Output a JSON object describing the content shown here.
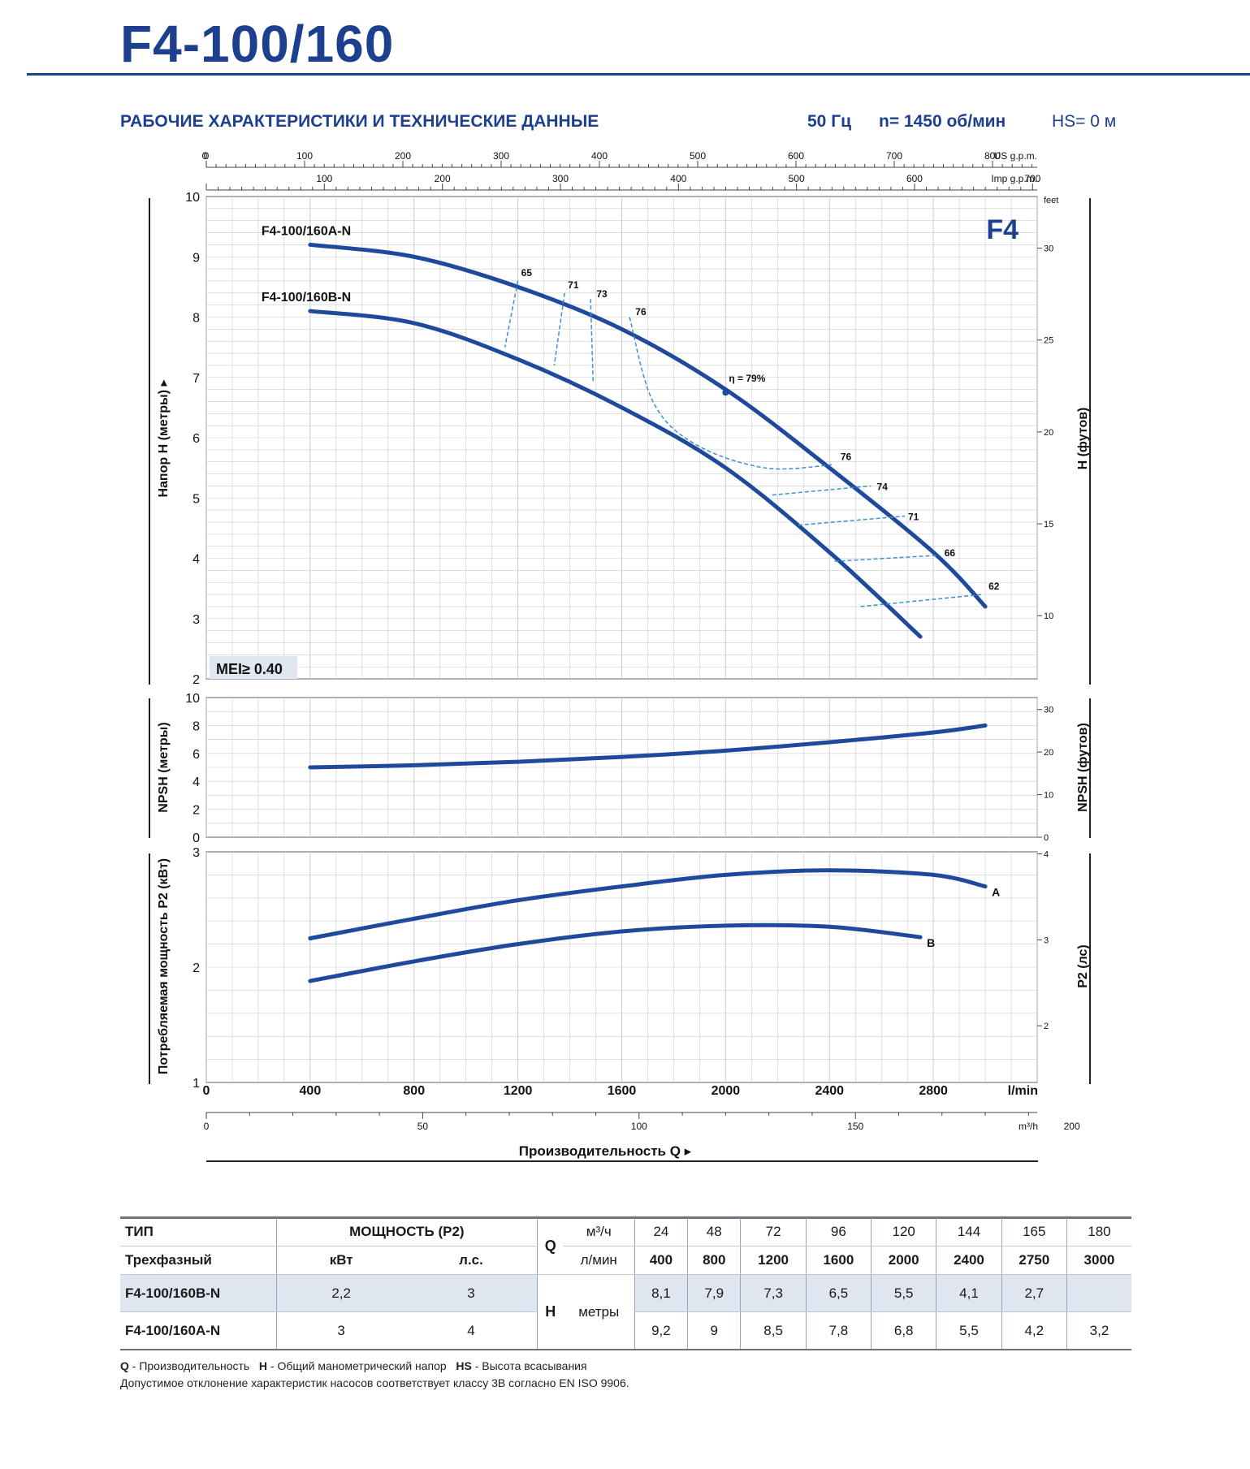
{
  "header": {
    "model": "F4-100/160",
    "section_title": "РАБОЧИЕ ХАРАКТЕРИСТИКИ И ТЕХНИЧЕСКИЕ ДАННЫЕ",
    "freq": "50 Гц",
    "speed": "n= 1450 об/мин",
    "suction": "HS= 0 м"
  },
  "chart_data": [
    {
      "type": "line",
      "badge": "F4",
      "mei": "MEI≥ 0.40",
      "ylabel_left": "Напор H (метры)",
      "ylabel_right": "H (футов)",
      "right_unit_top": "feet",
      "ylim": [
        2,
        10
      ],
      "yticks": [
        2,
        3,
        4,
        5,
        6,
        7,
        8,
        9,
        10
      ],
      "yticks_right": [
        10,
        15,
        20,
        25,
        30
      ],
      "top_axis_us": {
        "unit": "US g.p.m.",
        "ticks": [
          0,
          100,
          200,
          300,
          400,
          500,
          600,
          700,
          800
        ]
      },
      "top_axis_imp": {
        "unit": "Imp g.p.m.",
        "ticks": [
          100,
          200,
          300,
          400,
          500,
          600,
          700
        ]
      },
      "x_unit": "l/min",
      "xlim": [
        0,
        3200
      ],
      "series": [
        {
          "name": "F4-100/160A-N",
          "x": [
            400,
            800,
            1200,
            1600,
            2000,
            2400,
            2800,
            3000
          ],
          "y": [
            9.2,
            9.0,
            8.5,
            7.8,
            6.8,
            5.5,
            4.1,
            3.2
          ]
        },
        {
          "name": "F4-100/160B-N",
          "x": [
            400,
            800,
            1200,
            1600,
            2000,
            2400,
            2750
          ],
          "y": [
            8.1,
            7.9,
            7.3,
            6.5,
            5.5,
            4.1,
            2.7
          ]
        }
      ],
      "efficiency_labels": [
        {
          "text": "65",
          "x": 1200,
          "y": 8.6
        },
        {
          "text": "71",
          "x": 1380,
          "y": 8.4
        },
        {
          "text": "73",
          "x": 1490,
          "y": 8.25
        },
        {
          "text": "76",
          "x": 1640,
          "y": 7.95
        },
        {
          "text": "η = 79%",
          "x": 2000,
          "y": 6.85
        },
        {
          "text": "76",
          "x": 2430,
          "y": 5.55
        },
        {
          "text": "74",
          "x": 2570,
          "y": 5.05
        },
        {
          "text": "71",
          "x": 2690,
          "y": 4.55
        },
        {
          "text": "66",
          "x": 2830,
          "y": 3.95
        },
        {
          "text": "62",
          "x": 3000,
          "y": 3.4
        }
      ]
    },
    {
      "type": "line",
      "ylabel_left": "NPSH (метры)",
      "ylabel_right": "NPSH (футов)",
      "ylim": [
        0,
        10
      ],
      "yticks": [
        0,
        2,
        4,
        6,
        8,
        10
      ],
      "yticks_right": [
        0,
        10,
        20,
        30
      ],
      "series": [
        {
          "x": [
            400,
            800,
            1200,
            1600,
            2000,
            2400,
            2800,
            3000
          ],
          "y": [
            5.0,
            5.15,
            5.4,
            5.75,
            6.2,
            6.8,
            7.5,
            8.0
          ]
        }
      ]
    },
    {
      "type": "line",
      "ylabel_left": "Потребляемая мощность P2 (кВт)",
      "ylabel_right": "P2 (лс)",
      "ylim": [
        1,
        3
      ],
      "yticks": [
        1,
        2,
        3
      ],
      "yticks_right": [
        2,
        3,
        4
      ],
      "xlabel": "Производительность Q",
      "x_unit": "l/min",
      "xticks": [
        0,
        400,
        800,
        1200,
        1600,
        2000,
        2400,
        2800
      ],
      "x2_unit": "m³/h",
      "x2ticks": [
        0,
        50,
        100,
        150,
        200
      ],
      "series": [
        {
          "name": "A",
          "x": [
            400,
            800,
            1200,
            1600,
            2000,
            2400,
            2800,
            3000
          ],
          "y": [
            2.25,
            2.42,
            2.58,
            2.7,
            2.8,
            2.84,
            2.8,
            2.7
          ]
        },
        {
          "name": "B",
          "x": [
            400,
            800,
            1200,
            1600,
            2000,
            2400,
            2750
          ],
          "y": [
            1.88,
            2.05,
            2.2,
            2.31,
            2.36,
            2.35,
            2.26
          ]
        }
      ]
    }
  ],
  "table": {
    "h_type": "ТИП",
    "h_power": "МОЩНОСТЬ (P2)",
    "h_phase": "Трехфазный",
    "h_kw": "кВт",
    "h_hp": "л.с.",
    "q_letter": "Q",
    "q_m3h": "м³/ч",
    "q_lmin": "л/мин",
    "h_letter": "H",
    "h_unit": "метры",
    "m3h": [
      "24",
      "48",
      "72",
      "96",
      "120",
      "144",
      "165",
      "180"
    ],
    "lmin": [
      "400",
      "800",
      "1200",
      "1600",
      "2000",
      "2400",
      "2750",
      "3000"
    ],
    "rows": [
      {
        "model": "F4-100/160B-N",
        "kw": "2,2",
        "hp": "3",
        "h": [
          "8,1",
          "7,9",
          "7,3",
          "6,5",
          "5,5",
          "4,1",
          "2,7",
          ""
        ]
      },
      {
        "model": "F4-100/160A-N",
        "kw": "3",
        "hp": "4",
        "h": [
          "9,2",
          "9",
          "8,5",
          "7,8",
          "6,8",
          "5,5",
          "4,2",
          "3,2"
        ]
      }
    ]
  },
  "footnote": {
    "q_key": "Q",
    "q_text": " - Производительность",
    "h_key": "H",
    "h_text": " - Общий манометрический напор",
    "hs_key": "HS",
    "hs_text": " - Высота всасывания",
    "tolerance": "Допустимое отклонение характеристик насосов соответствует классу 3B согласно EN ISO 9906."
  },
  "colors": {
    "brand": "#1d3f8f",
    "curve": "#1f4a9c",
    "eff": "#3a8fd6",
    "grid": "#c8ccd2"
  }
}
